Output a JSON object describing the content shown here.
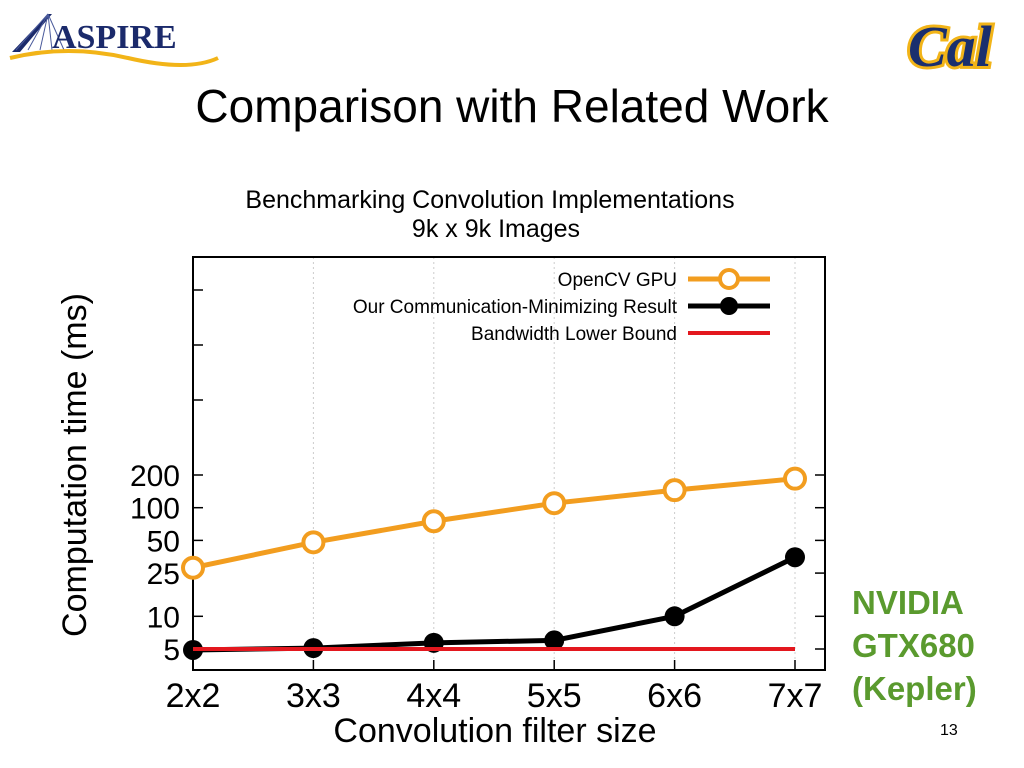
{
  "slide": {
    "title": "Comparison with Related Work",
    "logo_left": "ASPIRE",
    "logo_right": "Cal",
    "gpu_note": [
      "NVIDIA",
      "GTX680",
      "(Kepler)"
    ],
    "page_number": "13"
  },
  "colors": {
    "opencv": "#f29d1f",
    "ours": "#000000",
    "bound": "#e3171e",
    "note": "#5a9a2e",
    "aspire_blue": "#1b2a6b",
    "cal_blue": "#1a2f6e",
    "cal_gold": "#f2b418"
  },
  "chart_data": {
    "type": "line",
    "title": "Benchmarking Convolution Implementations",
    "subtitle": "9k x 9k Images",
    "xlabel": "Convolution filter size",
    "ylabel": "Computation time (ms)",
    "categories": [
      "2x2",
      "3x3",
      "4x4",
      "5x5",
      "6x6",
      "7x7"
    ],
    "y_scale": "log",
    "yticks": [
      5,
      10,
      25,
      50,
      100,
      200
    ],
    "ytick_labels": [
      "5",
      "10",
      "25",
      "50",
      "100",
      "200"
    ],
    "legend_position": "top-right",
    "grid": true,
    "series": [
      {
        "name": "OpenCV GPU",
        "values": [
          28,
          48,
          75,
          110,
          145,
          185
        ],
        "marker": "open-circle",
        "color_key": "opencv"
      },
      {
        "name": "Our Communication-Minimizing Result",
        "values": [
          4.9,
          5.1,
          5.7,
          6.0,
          10,
          35
        ],
        "marker": "filled-circle",
        "color_key": "ours"
      },
      {
        "name": "Bandwidth Lower Bound",
        "values": [
          5,
          5,
          5,
          5,
          5,
          5
        ],
        "marker": "none",
        "color_key": "bound"
      }
    ]
  }
}
